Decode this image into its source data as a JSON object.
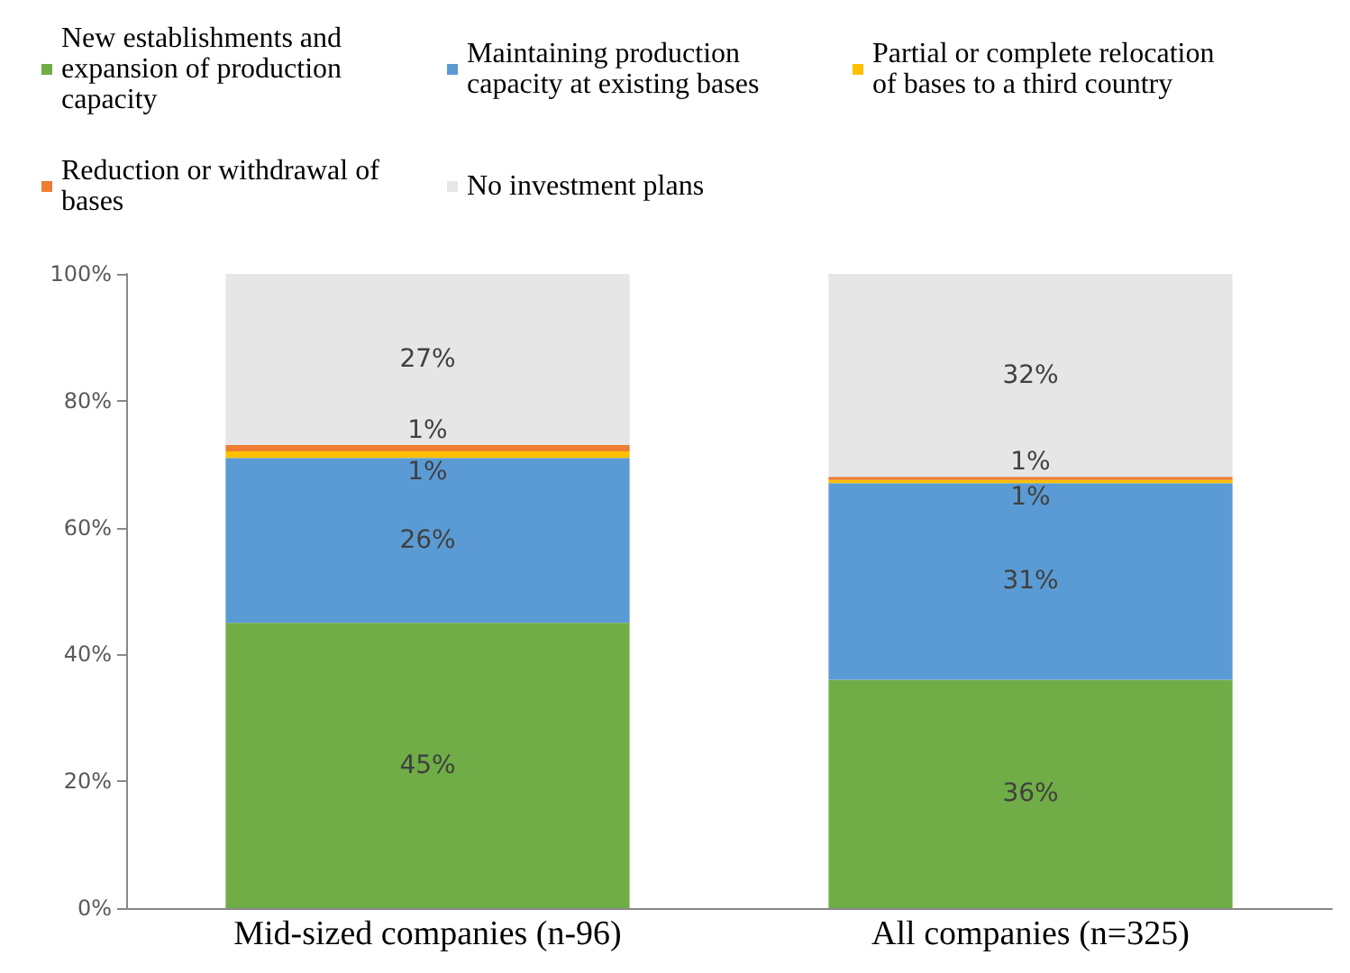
{
  "chart_data": {
    "type": "bar",
    "stacked": true,
    "categories": [
      "Mid-sized companies (n-96)",
      "All companies (n=325)"
    ],
    "series": [
      {
        "name": "New establishments and expansion of production capacity",
        "color": "#70ad47",
        "values": [
          45,
          36
        ],
        "value_labels": [
          "45%",
          "36%"
        ]
      },
      {
        "name": "Maintaining production capacity at existing bases",
        "color": "#5b9bd5",
        "values": [
          26,
          31
        ],
        "value_labels": [
          "26%",
          "31%"
        ]
      },
      {
        "name": "Partial or complete relocation of bases to a third country",
        "color": "#ffc000",
        "values": [
          1,
          0.5
        ],
        "value_labels": [
          "1%",
          "1%"
        ]
      },
      {
        "name": "Reduction or withdrawal of bases",
        "color": "#ed7d31",
        "values": [
          1,
          0.5
        ],
        "value_labels": [
          "1%",
          "1%"
        ]
      },
      {
        "name": "No investment plans",
        "color": "#e7e6e6",
        "values": [
          27,
          32
        ],
        "value_labels": [
          "27%",
          "32%"
        ]
      }
    ],
    "ylim": [
      0,
      100
    ],
    "yticks": [
      {
        "value": 0,
        "label": "0%"
      },
      {
        "value": 20,
        "label": "20%"
      },
      {
        "value": 40,
        "label": "40%"
      },
      {
        "value": 60,
        "label": "60%"
      },
      {
        "value": 80,
        "label": "80%"
      },
      {
        "value": 100,
        "label": "100%"
      }
    ],
    "legend": "top",
    "grid": false
  }
}
